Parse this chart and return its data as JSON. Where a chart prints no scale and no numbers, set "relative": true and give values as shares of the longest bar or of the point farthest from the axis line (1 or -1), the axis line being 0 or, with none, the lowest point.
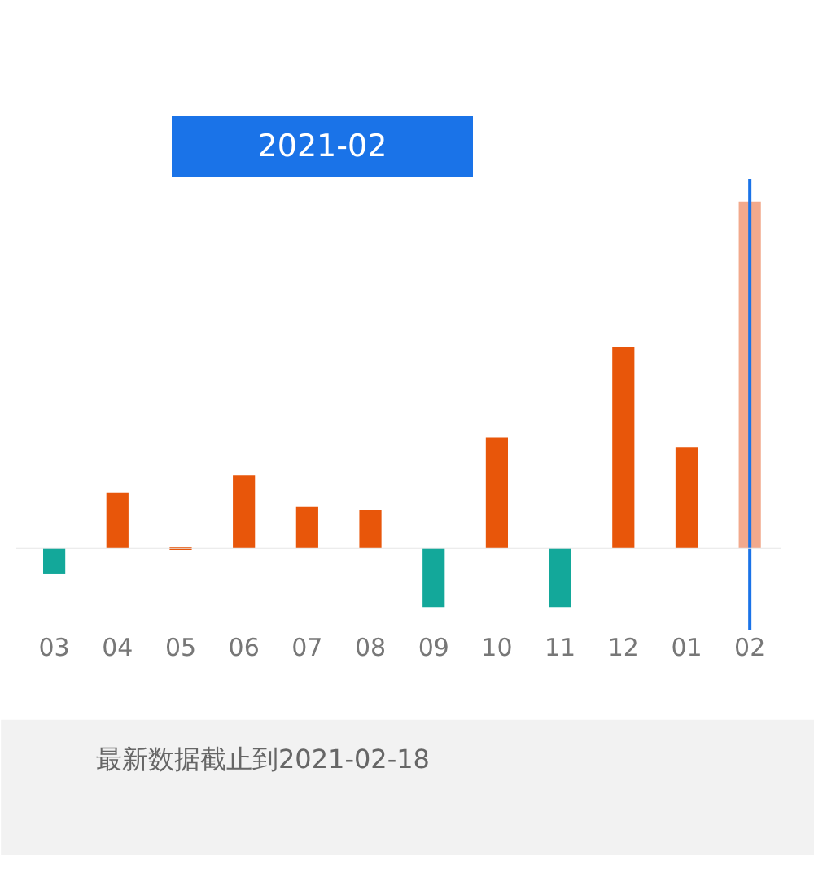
{
  "chart_data": {
    "type": "bar",
    "relative": true,
    "title": "2021-02",
    "categories": [
      "03",
      "04",
      "05",
      "06",
      "07",
      "08",
      "09",
      "10",
      "11",
      "12",
      "01",
      "02"
    ],
    "values": [
      -0.073,
      0.16,
      -0.005,
      0.21,
      0.12,
      0.11,
      -0.17,
      0.32,
      -0.17,
      0.58,
      0.29,
      1
    ],
    "colors": [
      "#13a89a",
      "#e8560a",
      "#e8560a",
      "#e8560a",
      "#e8560a",
      "#e8560a",
      "#13a89a",
      "#e8560a",
      "#13a89a",
      "#e8560a",
      "#e8560a",
      "#f2a98c"
    ],
    "ref_lines": [
      {
        "axis": "x",
        "value": "02",
        "color": "#1a73e8"
      }
    ],
    "annotations": [
      "最新数据截止到2021-02-18"
    ]
  }
}
